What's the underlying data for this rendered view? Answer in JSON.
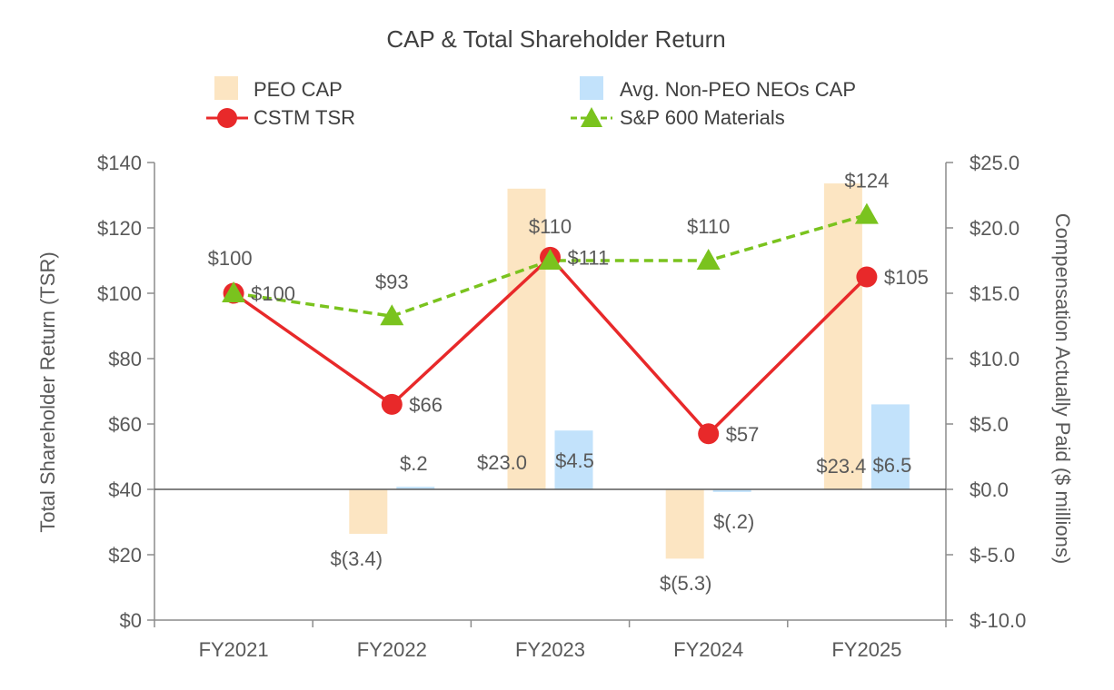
{
  "chart_data": {
    "type": "bar+line",
    "title": "CAP & Total Shareholder Return",
    "categories": [
      "FY2021",
      "FY2022",
      "FY2023",
      "FY2024",
      "FY2025"
    ],
    "y_left": {
      "label": "Total Shareholder Return (TSR)",
      "range": [
        0,
        140
      ],
      "ticks": [
        0,
        20,
        40,
        60,
        80,
        100,
        120,
        140
      ],
      "tick_labels": [
        "$0",
        "$20",
        "$40",
        "$60",
        "$80",
        "$100",
        "$120",
        "$140"
      ]
    },
    "y_right": {
      "label": "Compensation Actually Paid ($ millions)",
      "range": [
        -10,
        25
      ],
      "ticks": [
        -10,
        -5,
        0,
        5,
        10,
        15,
        20,
        25
      ],
      "tick_labels": [
        "$-10.0",
        "$-5.0",
        "$0.0",
        "$5.0",
        "$10.0",
        "$15.0",
        "$20.0",
        "$25.0"
      ]
    },
    "bar_series": [
      {
        "name": "PEO CAP",
        "axis": "right",
        "color": "#FCE5C2",
        "values": [
          0,
          -3.4,
          23.0,
          -5.3,
          23.4
        ],
        "labels": [
          "",
          "$(3.4)",
          "$23.0",
          "$(5.3)",
          "$23.4"
        ]
      },
      {
        "name": "Avg. Non-PEO NEOs CAP",
        "axis": "right",
        "color": "#C2E2FB",
        "values": [
          0,
          0.2,
          4.5,
          -0.2,
          6.5
        ],
        "labels": [
          "",
          "$.2",
          "$4.5",
          "$(.2)",
          "$6.5"
        ]
      }
    ],
    "line_series": [
      {
        "name": "CSTM TSR",
        "axis": "left",
        "color": "#E8292A",
        "marker": "circle",
        "style": "solid",
        "values": [
          100,
          66,
          111,
          57,
          105
        ],
        "labels": [
          "$100",
          "$66",
          "$111",
          "$57",
          "$105"
        ]
      },
      {
        "name": "S&P 600 Materials",
        "axis": "left",
        "color": "#7AC31E",
        "marker": "triangle",
        "style": "dashed",
        "values": [
          100,
          93,
          110,
          110,
          124
        ],
        "labels": [
          "$100",
          "$93",
          "$110",
          "$110",
          "$124"
        ]
      }
    ],
    "legend": [
      "PEO CAP",
      "Avg. Non-PEO NEOs CAP",
      "CSTM TSR",
      "S&P 600 Materials"
    ],
    "legend_position": "top",
    "grid": false
  }
}
